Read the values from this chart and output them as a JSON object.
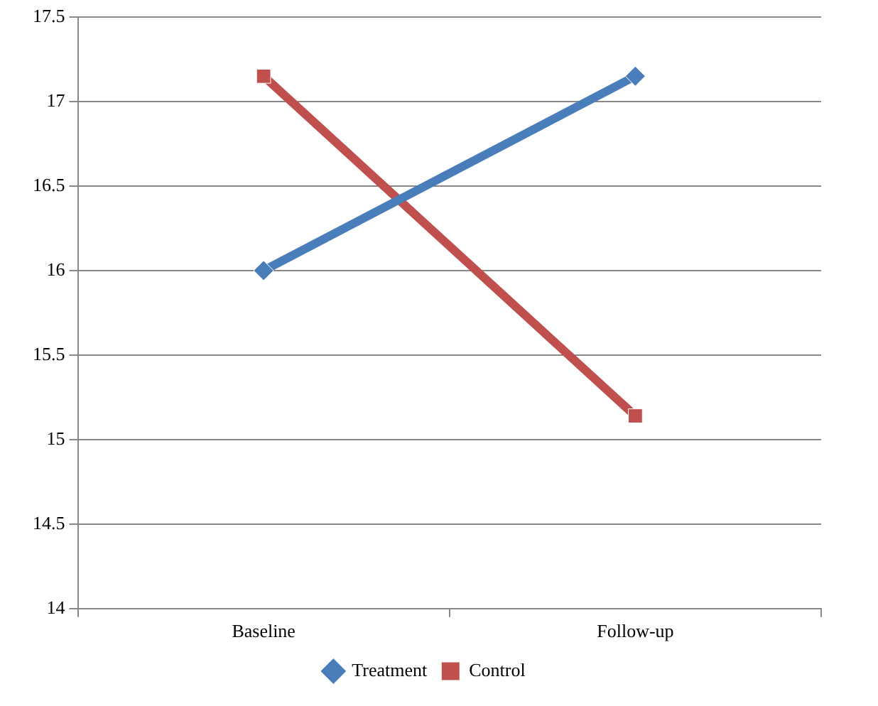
{
  "chart_data": {
    "type": "line",
    "categories": [
      "Baseline",
      "Follow-up"
    ],
    "series": [
      {
        "name": "Treatment",
        "color": "#4a7ebb",
        "values": [
          16.0,
          17.15
        ],
        "marker": "diamond"
      },
      {
        "name": "Control",
        "color": "#c0504d",
        "values": [
          17.15,
          15.14
        ],
        "marker": "square"
      }
    ],
    "ylim": [
      14,
      17.5
    ],
    "yticks": [
      14,
      14.5,
      15,
      15.5,
      16,
      16.5,
      17,
      17.5
    ],
    "grid": "y",
    "legend": "bottom",
    "line_style": "solid"
  }
}
